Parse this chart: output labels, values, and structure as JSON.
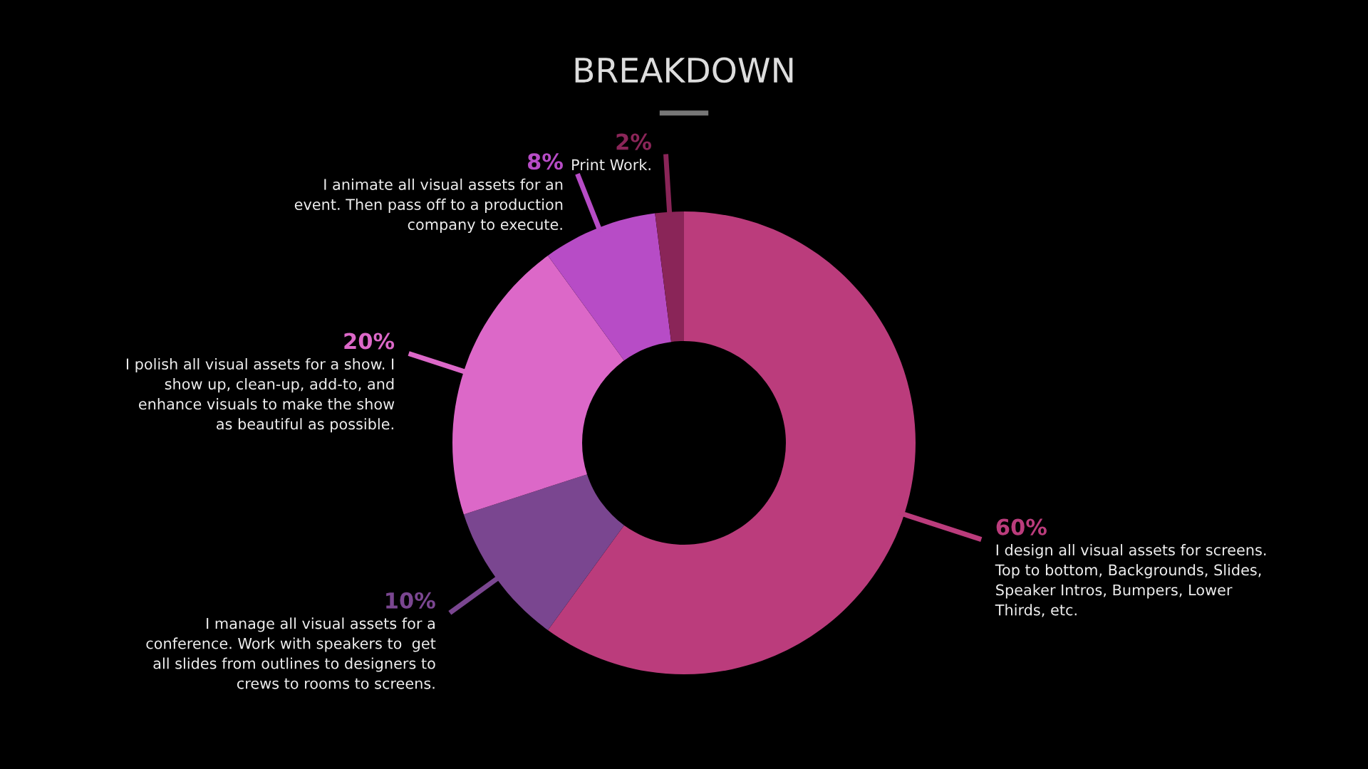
{
  "chart_data": {
    "type": "donut",
    "title": "BREAKDOWN",
    "categories": [
      "I design all visual assets for screens.\nTop to bottom, Backgrounds, Slides,\nSpeaker Intros, Bumpers, Lower\nThirds, etc.",
      "I manage all visual assets for a\nconference. Work with speakers to  get\nall slides from outlines to designers to\ncrews to rooms to screens.",
      "I polish all visual assets for a show. I\nshow up, clean-up, add-to, and\nenhance visuals to make the show\nas beautiful as possible.",
      "I animate all visual assets for an\nevent. Then pass off to a production\ncompany to execute.",
      "Print Work."
    ],
    "values": [
      60,
      10,
      20,
      8,
      2
    ],
    "value_labels": [
      "60%",
      "10%",
      "20%",
      "8%",
      "2%"
    ],
    "colors": [
      "#bb3c7c",
      "#7a4690",
      "#dc68c8",
      "#b74cc6",
      "#8a2558"
    ],
    "legend": false
  }
}
